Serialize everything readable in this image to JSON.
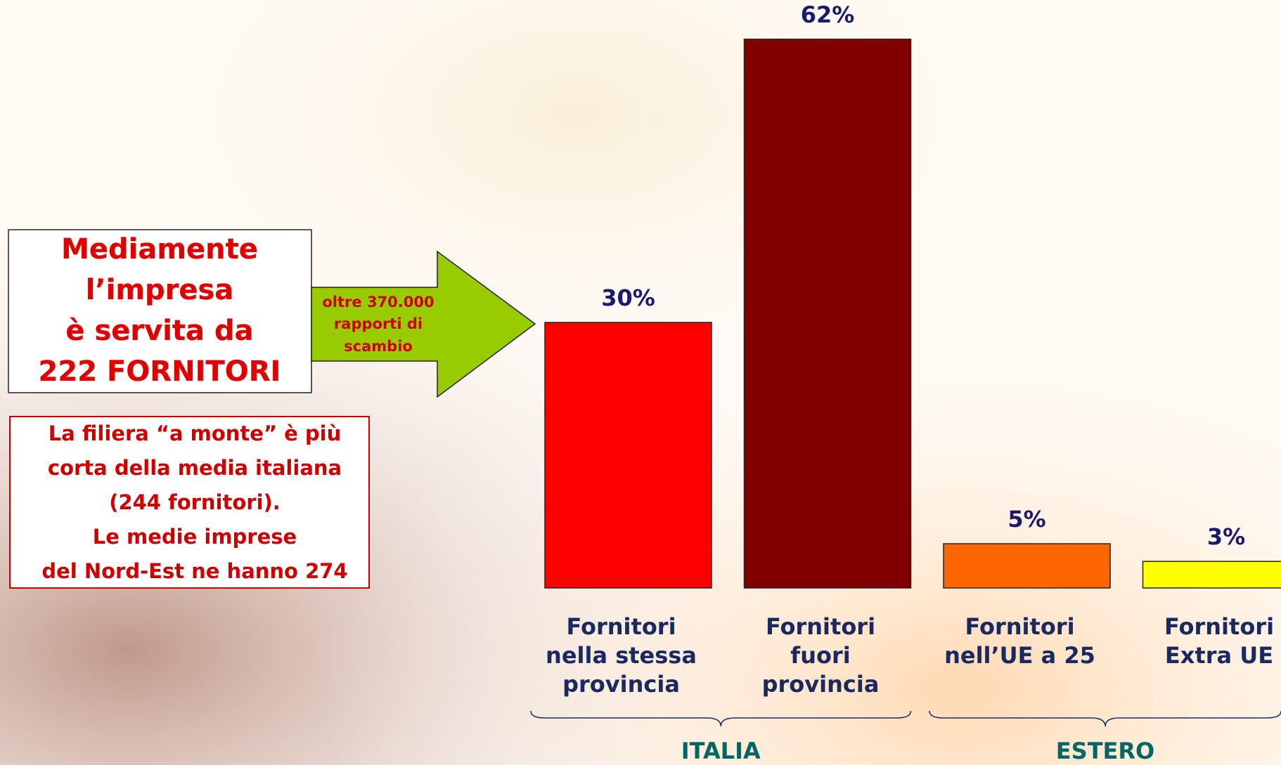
{
  "chart_data": {
    "type": "bar",
    "categories": [
      [
        "Fornitori",
        "nella stessa",
        "provincia"
      ],
      [
        "Fornitori",
        "fuori",
        "provincia"
      ],
      [
        "Fornitori",
        "nell’UE a 25"
      ],
      [
        "Fornitori",
        "Extra UE"
      ]
    ],
    "values": [
      30,
      62,
      5,
      3
    ],
    "value_labels": [
      "30%",
      "62%",
      "5%",
      "3%"
    ],
    "colors": [
      "#ff0000",
      "#800000",
      "#ff6600",
      "#ffff00"
    ],
    "groups": [
      "ITALIA",
      "ESTERO"
    ]
  },
  "annotations": {
    "main_box": [
      "Mediamente",
      "l’impresa",
      "è servita da",
      "222 FORNITORI"
    ],
    "arrow": [
      "oltre 370.000",
      "rapporti di",
      "scambio"
    ],
    "note_box": [
      "La filiera “a monte” è più",
      "corta della media italiana",
      "(244 fornitori).",
      "Le medie imprese",
      "del Nord-Est ne hanno 274"
    ]
  }
}
